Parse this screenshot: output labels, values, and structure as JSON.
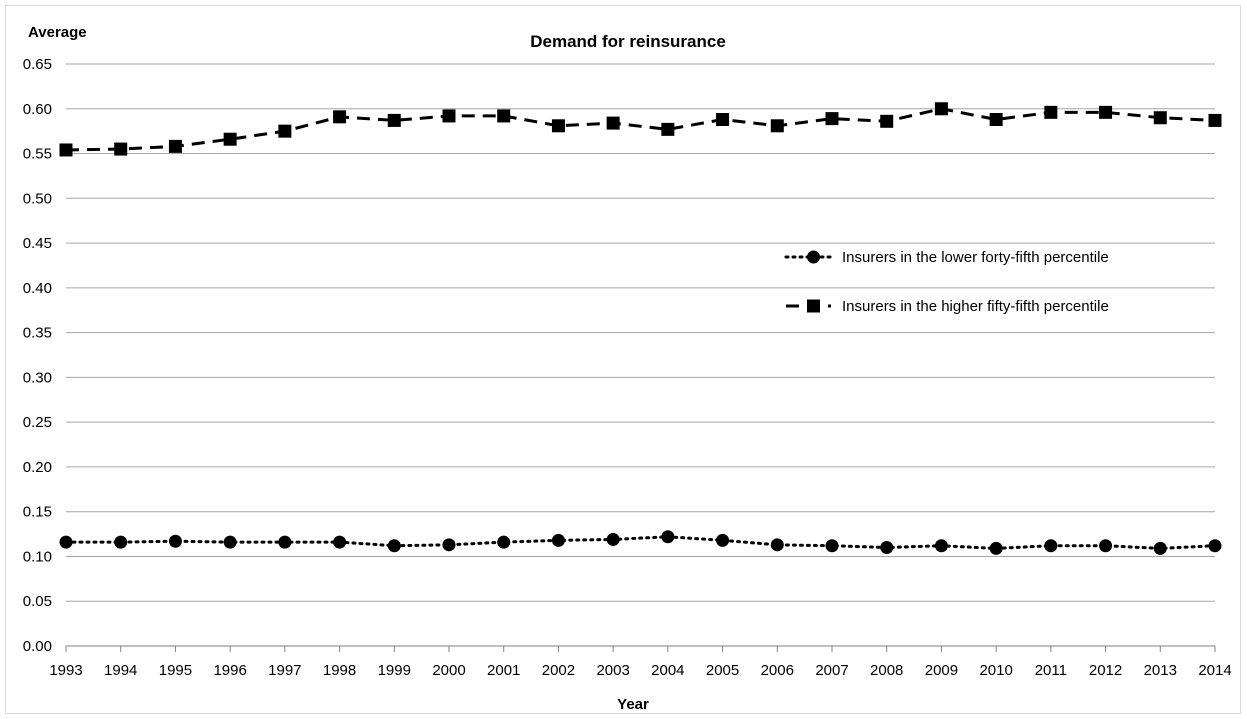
{
  "chart_data": {
    "type": "line",
    "title": "Demand for reinsurance",
    "xlabel": "Year",
    "ylabel": "Average",
    "ylim": [
      0,
      0.65
    ],
    "y_ticks": [
      "0.00",
      "0.05",
      "0.10",
      "0.15",
      "0.20",
      "0.25",
      "0.30",
      "0.35",
      "0.40",
      "0.45",
      "0.50",
      "0.55",
      "0.60",
      "0.65"
    ],
    "grid": true,
    "legend_position": "right",
    "categories": [
      "1993",
      "1994",
      "1995",
      "1996",
      "1997",
      "1998",
      "1999",
      "2000",
      "2001",
      "2002",
      "2003",
      "2004",
      "2005",
      "2006",
      "2007",
      "2008",
      "2009",
      "2010",
      "2011",
      "2012",
      "2013",
      "2014"
    ],
    "series": [
      {
        "name": "Insurers in the lower forty-fifth percentile",
        "style": "dotted",
        "marker": "circle",
        "color": "#000000",
        "values": [
          0.116,
          0.116,
          0.117,
          0.116,
          0.116,
          0.116,
          0.112,
          0.113,
          0.116,
          0.118,
          0.119,
          0.122,
          0.118,
          0.113,
          0.112,
          0.11,
          0.112,
          0.109,
          0.112,
          0.112,
          0.109,
          0.112
        ]
      },
      {
        "name": "Insurers in the higher fifty-fifth percentile",
        "style": "dashed",
        "marker": "square",
        "color": "#000000",
        "values": [
          0.554,
          0.555,
          0.558,
          0.566,
          0.575,
          0.591,
          0.587,
          0.592,
          0.592,
          0.581,
          0.584,
          0.577,
          0.588,
          0.581,
          0.589,
          0.586,
          0.6,
          0.588,
          0.596,
          0.596,
          0.59,
          0.587
        ]
      }
    ]
  }
}
